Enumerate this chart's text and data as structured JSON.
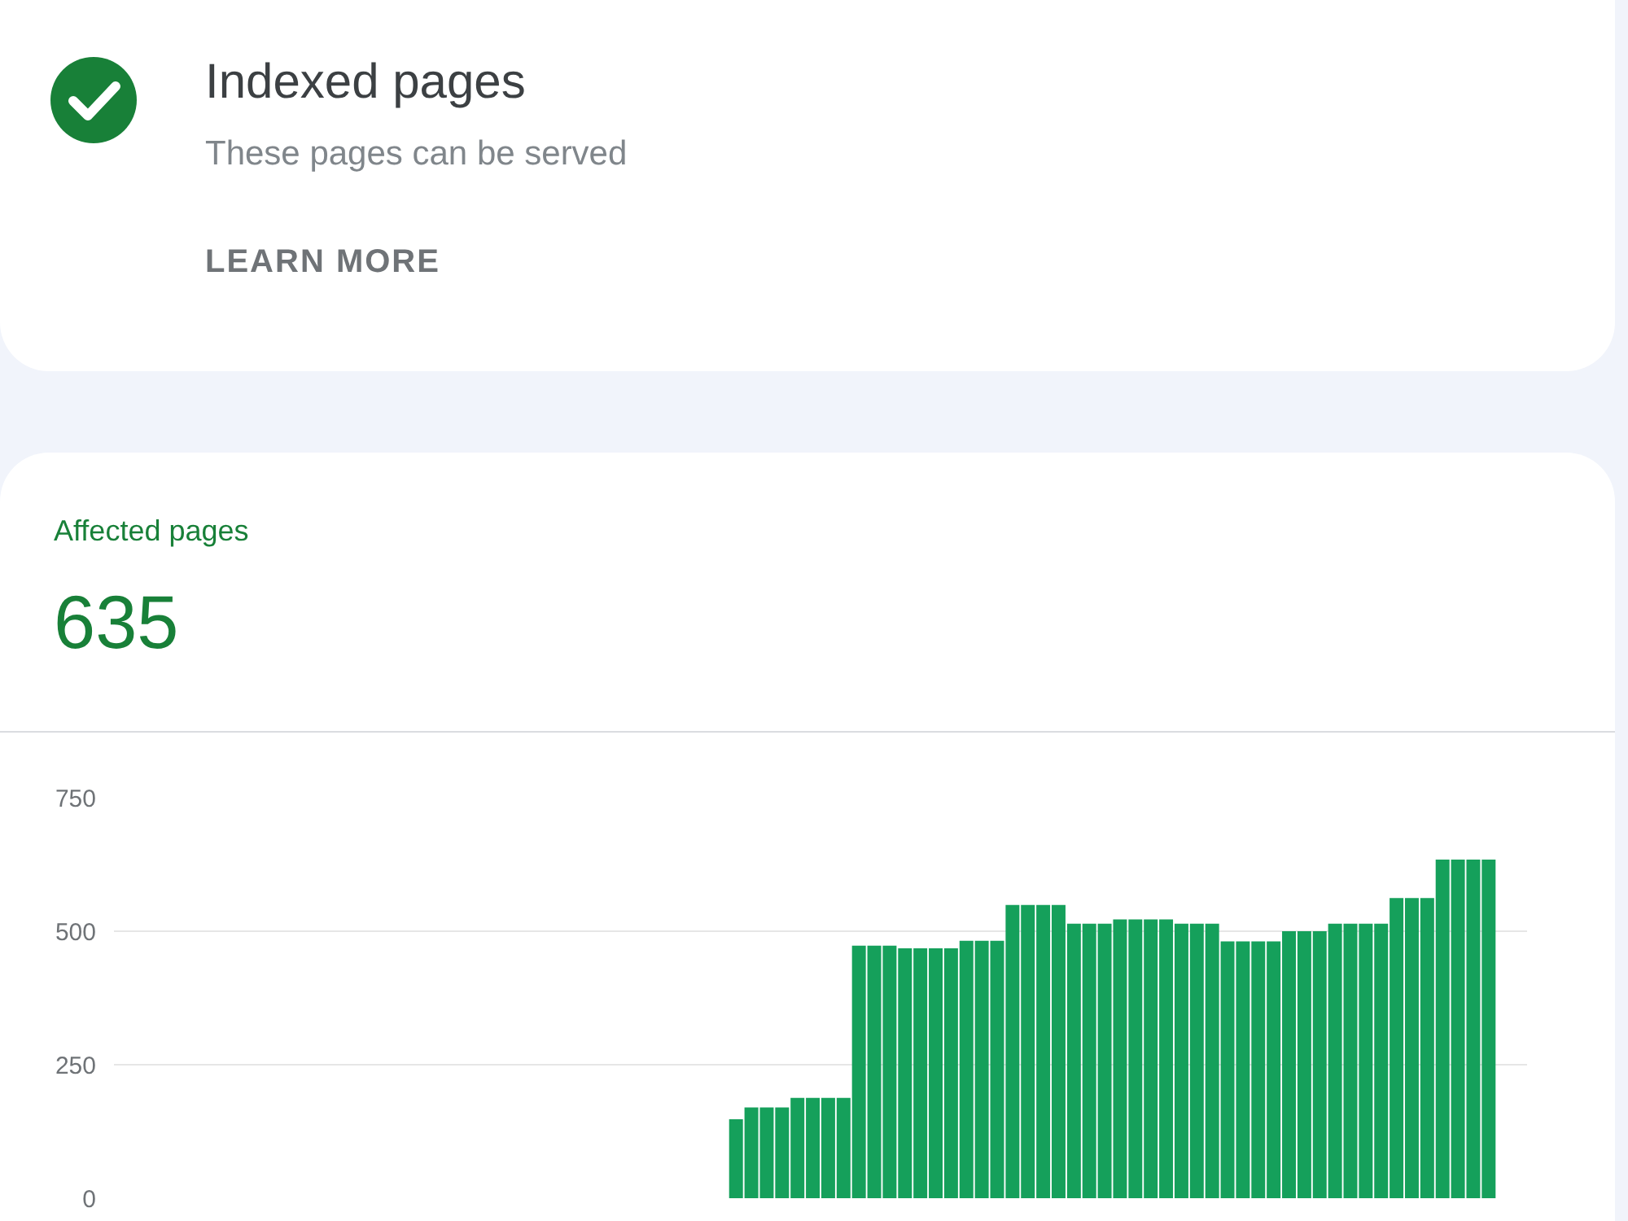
{
  "chart_data": {
    "type": "bar",
    "title": "Indexed pages",
    "subtitle": "These pages can be served",
    "annotations": [
      "LEARN MORE",
      "Affected pages",
      "635"
    ],
    "categories": [
      null,
      null,
      null,
      null,
      null,
      null,
      null,
      null,
      null,
      null,
      null,
      null,
      null,
      null,
      null,
      null,
      null,
      null,
      null,
      null,
      null,
      null,
      null,
      null,
      null,
      null,
      null,
      null,
      null,
      null,
      null,
      null,
      null,
      null,
      null,
      null,
      null,
      null,
      null,
      null,
      null,
      null,
      null,
      null,
      null,
      null,
      null,
      null,
      null,
      null,
      null,
      null,
      null,
      null,
      null,
      null,
      null,
      null,
      null,
      null,
      null,
      null,
      null,
      null,
      null,
      null,
      null,
      null,
      null,
      null,
      null,
      null,
      null,
      null,
      null,
      null,
      null,
      null,
      null,
      null,
      null,
      null,
      null,
      null,
      null,
      null,
      null,
      null,
      null,
      null,
      null,
      null
    ],
    "values": [
      null,
      null,
      null,
      null,
      null,
      null,
      null,
      null,
      null,
      null,
      null,
      null,
      null,
      null,
      null,
      null,
      null,
      null,
      null,
      null,
      null,
      null,
      null,
      null,
      null,
      null,
      null,
      null,
      null,
      null,
      null,
      null,
      null,
      null,
      null,
      null,
      null,
      null,
      null,
      null,
      148,
      170,
      170,
      170,
      188,
      188,
      188,
      188,
      473,
      473,
      473,
      468,
      468,
      468,
      468,
      482,
      482,
      482,
      549,
      549,
      549,
      549,
      514,
      514,
      514,
      522,
      522,
      522,
      522,
      514,
      514,
      514,
      481,
      481,
      481,
      481,
      500,
      500,
      500,
      514,
      514,
      514,
      514,
      562,
      562,
      562,
      634,
      634,
      634,
      634,
      null,
      null
    ],
    "color": "#15a05b",
    "ylim": [
      0,
      750
    ],
    "yticks": [
      0,
      250,
      500,
      750
    ],
    "grid": "y",
    "tick_labels": "y"
  }
}
